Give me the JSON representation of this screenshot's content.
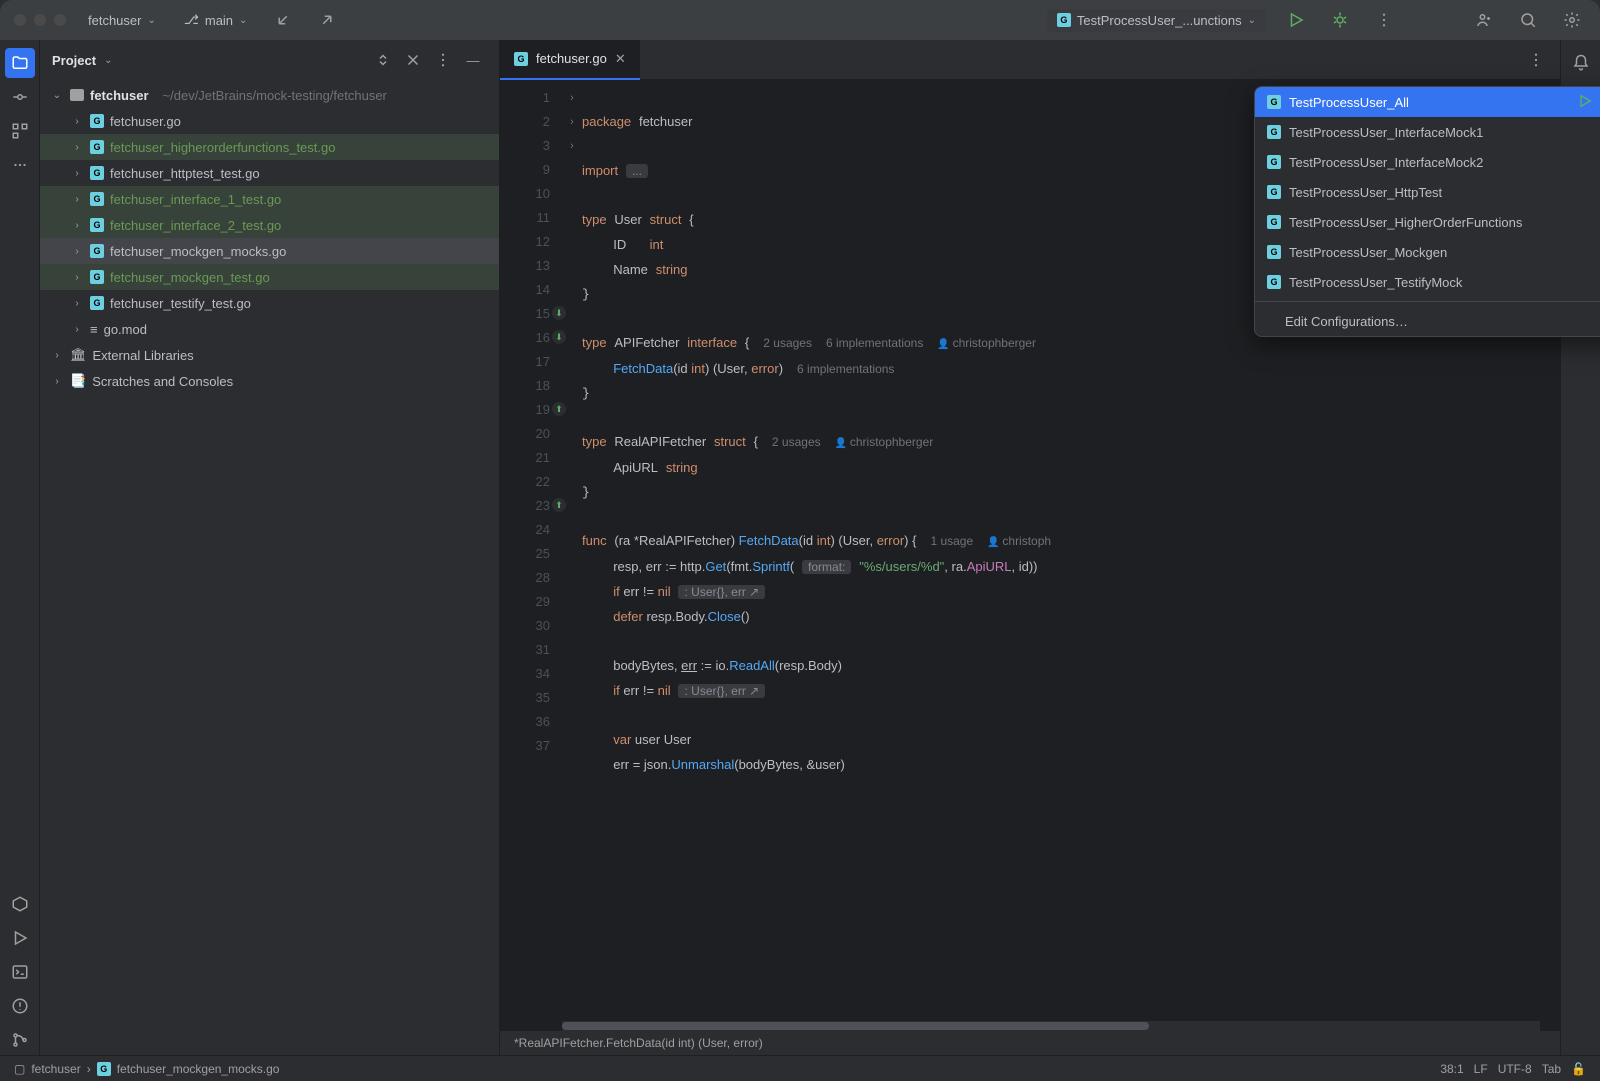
{
  "titlebar": {
    "project": "fetchuser",
    "branch": "main",
    "runConfigLabel": "TestProcessUser_...unctions"
  },
  "toolwindow": {
    "title": "Project"
  },
  "tree": {
    "root": {
      "name": "fetchuser",
      "path": "~/dev/JetBrains/mock-testing/fetchuser"
    },
    "files": [
      {
        "name": "fetchuser.go",
        "hl": false
      },
      {
        "name": "fetchuser_higherorderfunctions_test.go",
        "hl": true
      },
      {
        "name": "fetchuser_httptest_test.go",
        "hl": false
      },
      {
        "name": "fetchuser_interface_1_test.go",
        "hl": true
      },
      {
        "name": "fetchuser_interface_2_test.go",
        "hl": true
      },
      {
        "name": "fetchuser_mockgen_mocks.go",
        "hl": false,
        "sel": true
      },
      {
        "name": "fetchuser_mockgen_test.go",
        "hl": true
      },
      {
        "name": "fetchuser_testify_test.go",
        "hl": false
      },
      {
        "name": "go.mod",
        "hl": false,
        "mod": true
      }
    ],
    "extLib": "External Libraries",
    "scratches": "Scratches and Consoles"
  },
  "editor": {
    "tabName": "fetchuser.go",
    "contextPath": "*RealAPIFetcher.FetchData(id int) (User, error)"
  },
  "code": {
    "l1": "package",
    "l1b": "fetchuser",
    "l3": "import",
    "l3b": "...",
    "l10a": "type",
    "l10b": "User",
    "l10c": "struct",
    "l10d": "{",
    "l11a": "ID",
    "l11b": "int",
    "l12a": "Name",
    "l12b": "string",
    "l15a": "type",
    "l15b": "APIFetcher",
    "l15c": "interface",
    "l15d": "{",
    "l15u": "2 usages",
    "l15i": "6 implementations",
    "l15au": "christophberger",
    "l16a": "FetchData",
    "l16b": "(id ",
    "l16c": "int",
    "l16d": ") (",
    "l16e": "User",
    "l16f": ", ",
    "l16g": "error",
    "l16h": ")",
    "l16i": "6 implementations",
    "l19a": "type",
    "l19b": "RealAPIFetcher",
    "l19c": "struct",
    "l19d": "{",
    "l19u": "2 usages",
    "l19au": "christophberger",
    "l20a": "ApiURL",
    "l20b": "string",
    "l23a": "func",
    "l23b": "(ra *",
    "l23c": "RealAPIFetcher",
    "l23d": ") ",
    "l23e": "FetchData",
    "l23f": "(id ",
    "l23g": "int",
    "l23h": ") (",
    "l23i": "User",
    "l23j": ", ",
    "l23k": "error",
    "l23l": ") {",
    "l23u": "1 usage",
    "l23au": "christoph",
    "l24a": "resp, err := http.",
    "l24b": "Get",
    "l24c": "(fmt.",
    "l24d": "Sprintf",
    "l24e": "(",
    "l24hint": "format:",
    "l24f": "\"%s/users/%d\"",
    "l24g": ", ra.",
    "l24h": "ApiURL",
    "l24i": ", id))",
    "l25a": "if",
    "l25b": " err != ",
    "l25c": "nil",
    "l25hint": ": User{}, err ↗",
    "l28a": "defer",
    "l28b": " resp.Body.",
    "l28c": "Close",
    "l28d": "()",
    "l30a": "bodyBytes, ",
    "l30u": "err",
    "l30b": " := io.",
    "l30c": "ReadAll",
    "l30d": "(resp.Body)",
    "l31a": "if",
    "l31b": " err != ",
    "l31c": "nil",
    "l31hint": ": User{}, err ↗",
    "l35a": "var",
    "l35b": " user ",
    "l35c": "User",
    "l36a": "err = json.",
    "l36b": "Unmarshal",
    "l36c": "(bodyBytes, &user)"
  },
  "lineNumbers": [
    "1",
    "2",
    "3",
    "9",
    "10",
    "11",
    "12",
    "13",
    "14",
    "15",
    "16",
    "17",
    "18",
    "19",
    "20",
    "21",
    "22",
    "23",
    "24",
    "25",
    "28",
    "29",
    "30",
    "31",
    "34",
    "35",
    "36",
    "37"
  ],
  "dropdown": {
    "items": [
      "TestProcessUser_All",
      "TestProcessUser_InterfaceMock1",
      "TestProcessUser_InterfaceMock2",
      "TestProcessUser_HttpTest",
      "TestProcessUser_HigherOrderFunctions",
      "TestProcessUser_Mockgen",
      "TestProcessUser_TestifyMock"
    ],
    "edit": "Edit Configurations…"
  },
  "status": {
    "crumb1": "fetchuser",
    "crumb2": "fetchuser_mockgen_mocks.go",
    "pos": "38:1",
    "le": "LF",
    "enc": "UTF-8",
    "indent": "Tab"
  },
  "colors": {
    "bg": "#2b2d30",
    "editor": "#1e1f22",
    "accent": "#3574f0",
    "kw": "#cf8e6d",
    "type": "#c77dbb",
    "str": "#6aab73",
    "fn": "#56a8f5"
  }
}
